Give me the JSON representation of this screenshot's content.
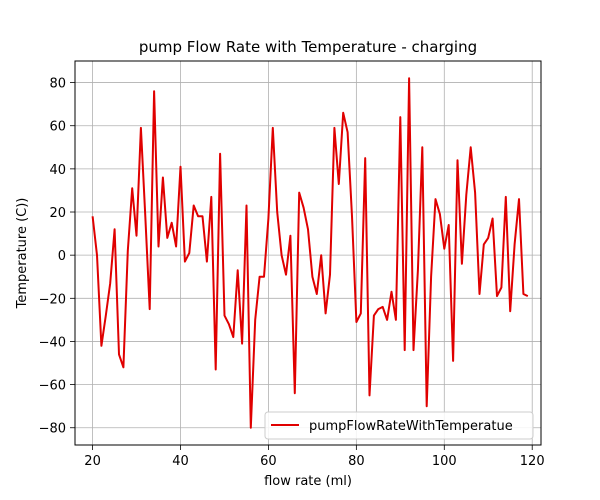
{
  "chart_data": {
    "type": "line",
    "title": "pump Flow Rate with Temperature - charging",
    "xlabel": "flow rate (ml)",
    "ylabel": "Temperature (C))",
    "xlim": [
      16,
      122
    ],
    "ylim": [
      -88,
      90
    ],
    "xticks": [
      20,
      40,
      60,
      80,
      100,
      120
    ],
    "yticks": [
      -80,
      -60,
      -40,
      -20,
      0,
      20,
      40,
      60,
      80
    ],
    "grid": true,
    "legend_position": "lower-right",
    "series": [
      {
        "name": "pumpFlowRateWithTemperatue",
        "color": "#e00000",
        "x": [
          20,
          21,
          22,
          23,
          24,
          25,
          26,
          27,
          28,
          29,
          30,
          31,
          32,
          33,
          34,
          35,
          36,
          37,
          38,
          39,
          40,
          41,
          42,
          43,
          44,
          45,
          46,
          47,
          48,
          49,
          50,
          51,
          52,
          53,
          54,
          55,
          56,
          57,
          58,
          59,
          60,
          61,
          62,
          63,
          64,
          65,
          66,
          67,
          68,
          69,
          70,
          71,
          72,
          73,
          74,
          75,
          76,
          77,
          78,
          79,
          80,
          81,
          82,
          83,
          84,
          85,
          86,
          87,
          88,
          89,
          90,
          91,
          92,
          93,
          94,
          95,
          96,
          97,
          98,
          99,
          100,
          101,
          102,
          103,
          104,
          105,
          106,
          107,
          108,
          109,
          110,
          111,
          112,
          113,
          114,
          115,
          116,
          117,
          118,
          119
        ],
        "y": [
          18,
          0,
          -42,
          -28,
          -13,
          12,
          -46,
          -52,
          2,
          31,
          9,
          59,
          18,
          -25,
          76,
          4,
          36,
          8,
          15,
          4,
          41,
          -3,
          1,
          23,
          18,
          18,
          -3,
          27,
          -53,
          47,
          -28,
          -32,
          -38,
          -7,
          -41,
          23,
          -80,
          -30,
          -10,
          -10,
          17,
          59,
          20,
          0,
          -9,
          9,
          -64,
          29,
          22,
          12,
          -10,
          -18,
          0,
          -27,
          -9,
          59,
          33,
          66,
          57,
          18,
          -31,
          -27,
          45,
          -65,
          -28,
          -25,
          -24,
          -30,
          -17,
          -30,
          64,
          -44,
          82,
          -44,
          -7,
          50,
          -70,
          -10,
          26,
          19,
          3,
          14,
          -49,
          44,
          -4,
          28,
          50,
          29,
          -18,
          5,
          8,
          17,
          -19,
          -15,
          27,
          -26,
          5,
          26,
          -18,
          -19
        ]
      }
    ]
  }
}
